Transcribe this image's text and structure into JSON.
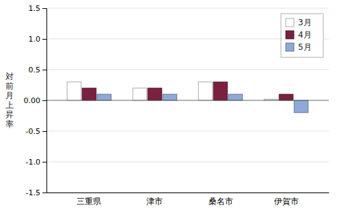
{
  "chart_data": {
    "type": "bar",
    "categories": [
      "三重県",
      "津市",
      "桑名市",
      "伊賀市"
    ],
    "series": [
      {
        "name": "3月",
        "color": "#ffffff",
        "values": [
          0.3,
          0.2,
          0.3,
          0.02
        ]
      },
      {
        "name": "4月",
        "color": "#7b2040",
        "values": [
          0.2,
          0.2,
          0.3,
          0.1
        ]
      },
      {
        "name": "5月",
        "color": "#8ea8d8",
        "values": [
          0.1,
          0.1,
          0.1,
          -0.2
        ]
      }
    ],
    "ylabel": "対\n前\n月\n上\n昇\n率",
    "ylim": [
      -1.5,
      1.5
    ],
    "yticks": [
      -1.5,
      {
        "value": -1.0,
        "label": "-1.0"
      },
      -0.5,
      {
        "value": 0.0,
        "label": "0.00"
      },
      0.5,
      {
        "value": 1.0,
        "label": "1.0"
      },
      1.5
    ],
    "grid": true,
    "legend": "upper right"
  }
}
